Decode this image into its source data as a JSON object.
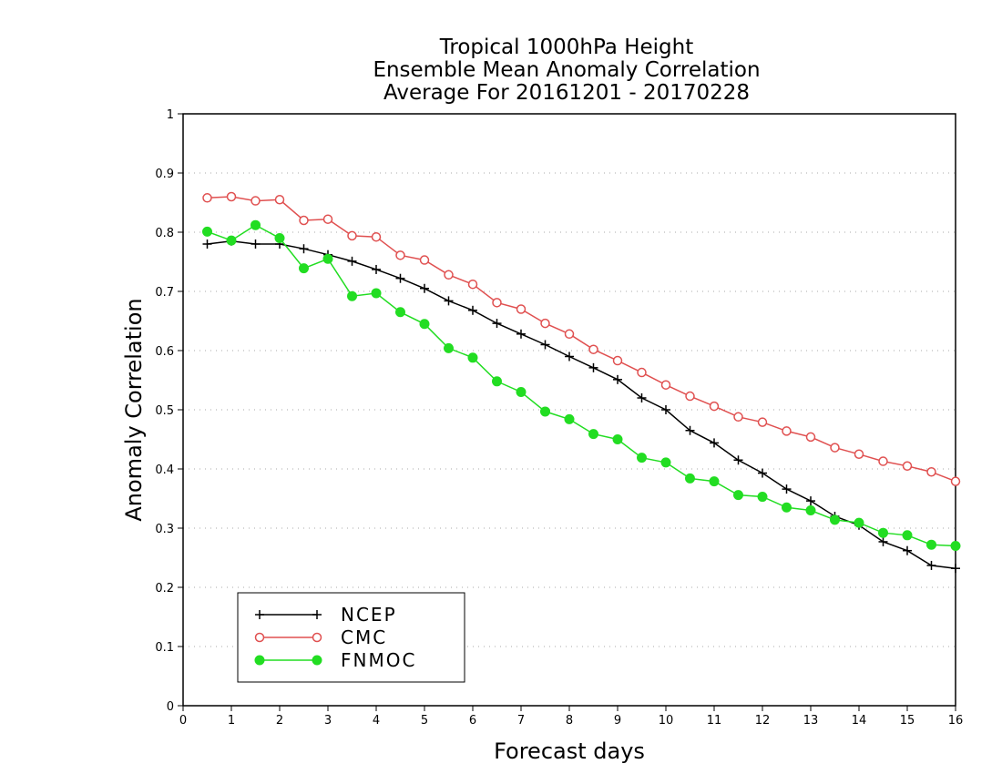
{
  "chart_data": {
    "type": "line",
    "title": [
      "Tropical 1000hPa Height",
      "Ensemble Mean Anomaly Correlation",
      "Average For 20161201 - 20170228"
    ],
    "xlabel": "Forecast days",
    "ylabel": "Anomaly Correlation",
    "xlim": [
      0,
      16
    ],
    "ylim": [
      0,
      1
    ],
    "xticks": [
      "0",
      "1",
      "2",
      "3",
      "4",
      "5",
      "6",
      "7",
      "8",
      "9",
      "10",
      "11",
      "12",
      "13",
      "14",
      "15",
      "16"
    ],
    "yticks": [
      "0",
      "0.1",
      "0.2",
      "0.3",
      "0.4",
      "0.5",
      "0.6",
      "0.7",
      "0.8",
      "0.9",
      "1"
    ],
    "grid": true,
    "legend_position": "bottom-left",
    "x": [
      0.5,
      1,
      1.5,
      2,
      2.5,
      3,
      3.5,
      4,
      4.5,
      5,
      5.5,
      6,
      6.5,
      7,
      7.5,
      8,
      8.5,
      9,
      9.5,
      10,
      10.5,
      11,
      11.5,
      12,
      12.5,
      13,
      13.5,
      14,
      14.5,
      15,
      15.5,
      16
    ],
    "series": [
      {
        "name": "NCEP",
        "color": "#000000",
        "marker": "plus",
        "values": [
          0.78,
          0.785,
          0.78,
          0.78,
          0.772,
          0.762,
          0.751,
          0.737,
          0.722,
          0.705,
          0.684,
          0.668,
          0.646,
          0.628,
          0.61,
          0.59,
          0.571,
          0.551,
          0.52,
          0.5,
          0.465,
          0.444,
          0.415,
          0.393,
          0.366,
          0.346,
          0.32,
          0.305,
          0.277,
          0.262,
          0.237,
          0.232
        ]
      },
      {
        "name": "CMC",
        "color": "#e05050",
        "marker": "open-circle",
        "values": [
          0.858,
          0.86,
          0.853,
          0.855,
          0.82,
          0.822,
          0.794,
          0.792,
          0.761,
          0.753,
          0.728,
          0.712,
          0.681,
          0.67,
          0.646,
          0.628,
          0.602,
          0.583,
          0.563,
          0.542,
          0.523,
          0.506,
          0.488,
          0.479,
          0.464,
          0.454,
          0.436,
          0.425,
          0.413,
          0.405,
          0.395,
          0.379
        ]
      },
      {
        "name": "FNMOC",
        "color": "#22dd22",
        "marker": "filled-circle",
        "values": [
          0.801,
          0.786,
          0.812,
          0.79,
          0.739,
          0.755,
          0.692,
          0.697,
          0.665,
          0.645,
          0.604,
          0.588,
          0.548,
          0.53,
          0.497,
          0.484,
          0.459,
          0.45,
          0.419,
          0.411,
          0.384,
          0.379,
          0.356,
          0.353,
          0.335,
          0.33,
          0.314,
          0.309,
          0.292,
          0.288,
          0.272,
          0.27
        ]
      }
    ]
  }
}
